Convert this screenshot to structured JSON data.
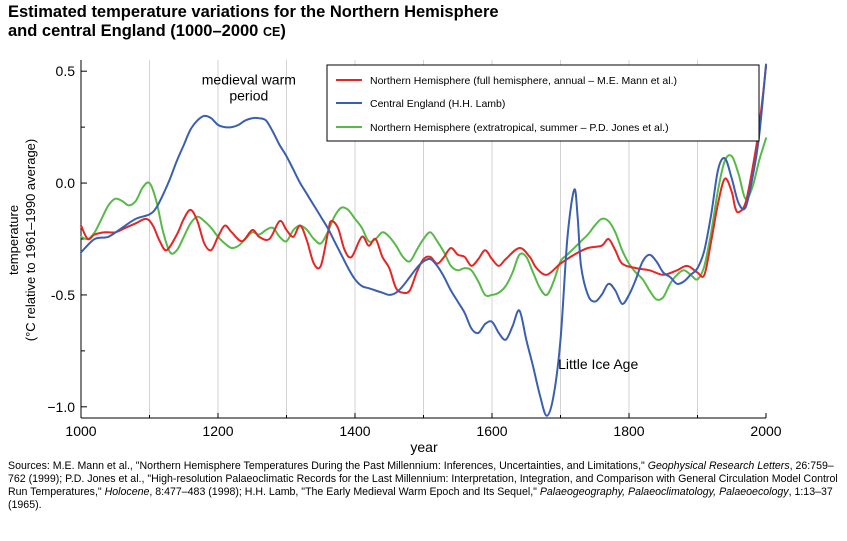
{
  "title": {
    "line1": "Estimated temperature variations for the Northern Hemisphere",
    "line2": "and central England (1000–2000 ",
    "line2_suffix": "CE",
    "line2_end": ")"
  },
  "chart_data": {
    "type": "line",
    "xlabel": "year",
    "ylabel": "temperature",
    "ylabel2": "(°C relative to 1961–1990 average)",
    "xlim": [
      1000,
      2000
    ],
    "ylim": [
      -1.05,
      0.55
    ],
    "x_ticks": [
      1000,
      1200,
      1400,
      1600,
      1800,
      2000
    ],
    "y_ticks": [
      0.5,
      0.0,
      -0.5,
      -1.0
    ],
    "y_tick_labels": [
      "0.5",
      "0.0",
      "-0.5",
      "−1.0"
    ],
    "grid": "vertical lines every 100 years",
    "legend_position": "top-right",
    "annotations": [
      {
        "text": "medieval warm",
        "x": 1245,
        "y": 0.44
      },
      {
        "text": "period",
        "x": 1245,
        "y": 0.37
      },
      {
        "text": "Little Ice Age",
        "x": 1755,
        "y": -0.83
      }
    ],
    "series": [
      {
        "name": "Northern Hemisphere (full hemisphere, annual – M.E. Mann et al.)",
        "color": "#e62525",
        "x": [
          1000,
          1010,
          1020,
          1035,
          1050,
          1065,
          1080,
          1095,
          1105,
          1115,
          1125,
          1140,
          1150,
          1160,
          1170,
          1180,
          1190,
          1200,
          1210,
          1220,
          1235,
          1250,
          1260,
          1275,
          1290,
          1300,
          1310,
          1320,
          1330,
          1340,
          1350,
          1360,
          1365,
          1375,
          1385,
          1395,
          1410,
          1420,
          1430,
          1440,
          1450,
          1460,
          1470,
          1480,
          1490,
          1500,
          1510,
          1520,
          1530,
          1540,
          1550,
          1560,
          1570,
          1580,
          1590,
          1600,
          1610,
          1620,
          1640,
          1655,
          1665,
          1680,
          1700,
          1720,
          1740,
          1760,
          1770,
          1780,
          1790,
          1810,
          1830,
          1850,
          1870,
          1885,
          1900,
          1910,
          1920,
          1930,
          1940,
          1950,
          1955,
          1960,
          1970,
          1980,
          1990,
          2000
        ],
        "y": [
          -0.19,
          -0.25,
          -0.23,
          -0.22,
          -0.22,
          -0.2,
          -0.18,
          -0.16,
          -0.19,
          -0.26,
          -0.3,
          -0.23,
          -0.16,
          -0.12,
          -0.17,
          -0.27,
          -0.3,
          -0.24,
          -0.19,
          -0.22,
          -0.26,
          -0.21,
          -0.24,
          -0.25,
          -0.17,
          -0.21,
          -0.24,
          -0.19,
          -0.26,
          -0.36,
          -0.37,
          -0.23,
          -0.17,
          -0.2,
          -0.3,
          -0.33,
          -0.24,
          -0.28,
          -0.25,
          -0.33,
          -0.38,
          -0.47,
          -0.49,
          -0.48,
          -0.4,
          -0.34,
          -0.33,
          -0.36,
          -0.33,
          -0.29,
          -0.32,
          -0.33,
          -0.37,
          -0.34,
          -0.3,
          -0.34,
          -0.37,
          -0.34,
          -0.29,
          -0.33,
          -0.38,
          -0.41,
          -0.36,
          -0.32,
          -0.29,
          -0.28,
          -0.25,
          -0.3,
          -0.36,
          -0.38,
          -0.39,
          -0.41,
          -0.39,
          -0.37,
          -0.4,
          -0.41,
          -0.26,
          -0.09,
          0.02,
          -0.04,
          -0.11,
          -0.13,
          -0.09,
          0.06,
          0.25,
          0.52
        ]
      },
      {
        "name": "Central England (H.H. Lamb)",
        "color": "#3b5fb0",
        "x": [
          1000,
          1020,
          1040,
          1060,
          1080,
          1100,
          1110,
          1120,
          1130,
          1140,
          1150,
          1160,
          1170,
          1180,
          1190,
          1200,
          1210,
          1220,
          1230,
          1240,
          1250,
          1260,
          1270,
          1280,
          1290,
          1300,
          1310,
          1320,
          1330,
          1340,
          1350,
          1360,
          1370,
          1380,
          1390,
          1400,
          1410,
          1420,
          1430,
          1440,
          1450,
          1460,
          1470,
          1480,
          1490,
          1500,
          1510,
          1520,
          1530,
          1540,
          1550,
          1560,
          1570,
          1580,
          1590,
          1600,
          1610,
          1620,
          1630,
          1640,
          1650,
          1660,
          1670,
          1680,
          1690,
          1700,
          1710,
          1720,
          1725,
          1730,
          1740,
          1750,
          1760,
          1770,
          1780,
          1790,
          1800,
          1810,
          1820,
          1830,
          1840,
          1850,
          1860,
          1870,
          1880,
          1890,
          1900,
          1910,
          1920,
          1930,
          1940,
          1950,
          1960,
          1970,
          1980,
          1990,
          2000
        ],
        "y": [
          -0.31,
          -0.25,
          -0.24,
          -0.2,
          -0.16,
          -0.14,
          -0.11,
          -0.05,
          0.02,
          0.1,
          0.17,
          0.24,
          0.28,
          0.3,
          0.29,
          0.26,
          0.25,
          0.25,
          0.26,
          0.28,
          0.29,
          0.29,
          0.28,
          0.23,
          0.17,
          0.12,
          0.06,
          0.0,
          -0.05,
          -0.1,
          -0.15,
          -0.2,
          -0.26,
          -0.32,
          -0.38,
          -0.43,
          -0.46,
          -0.47,
          -0.48,
          -0.49,
          -0.5,
          -0.49,
          -0.46,
          -0.42,
          -0.38,
          -0.35,
          -0.34,
          -0.37,
          -0.42,
          -0.48,
          -0.53,
          -0.58,
          -0.65,
          -0.67,
          -0.63,
          -0.62,
          -0.67,
          -0.7,
          -0.64,
          -0.57,
          -0.7,
          -0.82,
          -0.95,
          -1.04,
          -0.95,
          -0.7,
          -0.25,
          -0.03,
          -0.15,
          -0.37,
          -0.5,
          -0.53,
          -0.5,
          -0.45,
          -0.48,
          -0.54,
          -0.5,
          -0.43,
          -0.35,
          -0.32,
          -0.35,
          -0.4,
          -0.42,
          -0.45,
          -0.44,
          -0.41,
          -0.38,
          -0.3,
          -0.14,
          0.06,
          0.11,
          0.02,
          -0.09,
          -0.11,
          0.02,
          0.21,
          0.53
        ]
      },
      {
        "name": "Northern Hemisphere (extratropical, summer – P.D. Jones et al.)",
        "color": "#57b948",
        "x": [
          1000,
          1010,
          1020,
          1030,
          1040,
          1050,
          1060,
          1070,
          1080,
          1090,
          1100,
          1110,
          1120,
          1130,
          1140,
          1150,
          1160,
          1170,
          1180,
          1190,
          1200,
          1210,
          1220,
          1230,
          1240,
          1250,
          1260,
          1270,
          1280,
          1290,
          1300,
          1310,
          1320,
          1330,
          1340,
          1350,
          1360,
          1370,
          1380,
          1390,
          1400,
          1410,
          1420,
          1430,
          1440,
          1450,
          1460,
          1470,
          1480,
          1490,
          1500,
          1510,
          1520,
          1530,
          1540,
          1550,
          1560,
          1570,
          1580,
          1590,
          1600,
          1610,
          1620,
          1630,
          1640,
          1650,
          1660,
          1670,
          1680,
          1690,
          1700,
          1710,
          1720,
          1730,
          1740,
          1750,
          1760,
          1770,
          1780,
          1790,
          1800,
          1810,
          1820,
          1830,
          1840,
          1850,
          1860,
          1870,
          1880,
          1890,
          1900,
          1910,
          1920,
          1930,
          1940,
          1950,
          1960,
          1970,
          1980,
          1990,
          2000
        ],
        "y": [
          -0.24,
          -0.25,
          -0.22,
          -0.16,
          -0.1,
          -0.07,
          -0.08,
          -0.1,
          -0.08,
          -0.02,
          0.0,
          -0.08,
          -0.22,
          -0.31,
          -0.3,
          -0.24,
          -0.18,
          -0.15,
          -0.17,
          -0.2,
          -0.24,
          -0.27,
          -0.29,
          -0.28,
          -0.25,
          -0.22,
          -0.23,
          -0.21,
          -0.2,
          -0.24,
          -0.26,
          -0.21,
          -0.19,
          -0.21,
          -0.25,
          -0.27,
          -0.22,
          -0.15,
          -0.11,
          -0.12,
          -0.16,
          -0.2,
          -0.26,
          -0.25,
          -0.22,
          -0.24,
          -0.28,
          -0.33,
          -0.35,
          -0.3,
          -0.25,
          -0.22,
          -0.26,
          -0.31,
          -0.37,
          -0.39,
          -0.38,
          -0.39,
          -0.44,
          -0.5,
          -0.5,
          -0.49,
          -0.46,
          -0.4,
          -0.32,
          -0.33,
          -0.4,
          -0.47,
          -0.5,
          -0.44,
          -0.35,
          -0.32,
          -0.29,
          -0.26,
          -0.23,
          -0.19,
          -0.16,
          -0.17,
          -0.22,
          -0.3,
          -0.36,
          -0.4,
          -0.43,
          -0.48,
          -0.52,
          -0.51,
          -0.45,
          -0.41,
          -0.39,
          -0.41,
          -0.43,
          -0.37,
          -0.22,
          -0.03,
          0.1,
          0.12,
          0.04,
          -0.07,
          -0.02,
          0.1,
          0.2
        ]
      }
    ]
  },
  "sources": {
    "label": "Sources:",
    "part1": " M.E. Mann et al., \"Northern Hemisphere Temperatures During the Past Millennium: Inferences, Uncertainties, and Limitations,\" ",
    "journal1": "Geophysical Research Letters",
    "part2": ", 26:759–762 (1999); P.D. Jones et al., \"High-resolution Palaeoclimatic Records for the Last Millennium: Interpretation, Integration, and Comparison with General Circulation Model Control Run Temperatures,\" ",
    "journal2": "Holocene",
    "part3": ", 8:477–483 (1998); H.H. Lamb, \"The Early Medieval Warm Epoch and Its Sequel,\" ",
    "journal3": "Palaeogeography, Palaeoclimatology, Palaeoecology",
    "part4": ", 1:13–37 (1965)."
  }
}
